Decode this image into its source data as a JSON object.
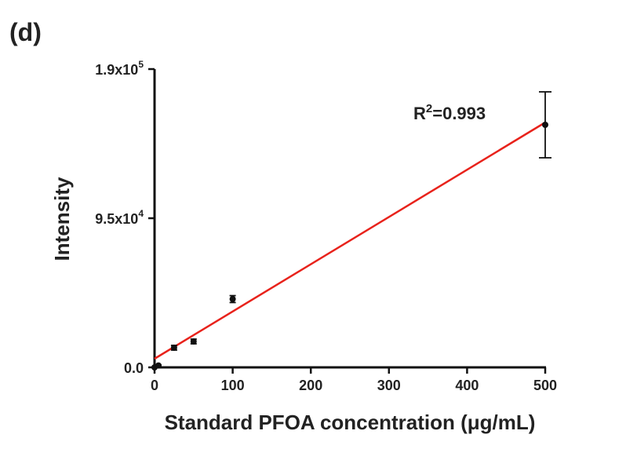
{
  "panel_label": "(d)",
  "chart_data": {
    "type": "scatter",
    "xlabel": "Standard PFOA concentration (μg/mL)",
    "ylabel": "Intensity",
    "xlim": [
      0,
      500
    ],
    "ylim": [
      0,
      190000
    ],
    "x_ticks": [
      0,
      100,
      200,
      300,
      400,
      500
    ],
    "x_tick_labels": [
      "0",
      "100",
      "200",
      "300",
      "400",
      "500"
    ],
    "y_ticks": [
      {
        "value": 0,
        "mantissa": "0.0",
        "exponent": ""
      },
      {
        "value": 95000,
        "mantissa": "9.5x10",
        "exponent": "4"
      },
      {
        "value": 190000,
        "mantissa": "1.9x10",
        "exponent": "5"
      }
    ],
    "grid": false,
    "points": [
      {
        "x": 0,
        "y": 0,
        "err": 0
      },
      {
        "x": 5,
        "y": 1200,
        "err": 400
      },
      {
        "x": 25,
        "y": 12500,
        "err": 1500
      },
      {
        "x": 50,
        "y": 16500,
        "err": 1500
      },
      {
        "x": 100,
        "y": 43500,
        "err": 2200
      },
      {
        "x": 500,
        "y": 154500,
        "err": 21000
      }
    ],
    "fit_line": {
      "x": [
        0,
        500
      ],
      "y": [
        5500,
        156000
      ],
      "color": "#e8221b"
    },
    "annotation": {
      "base": "R",
      "sup": "2",
      "tail": "=0.993"
    },
    "marker_color": "#111111",
    "axis_color": "#111111"
  }
}
